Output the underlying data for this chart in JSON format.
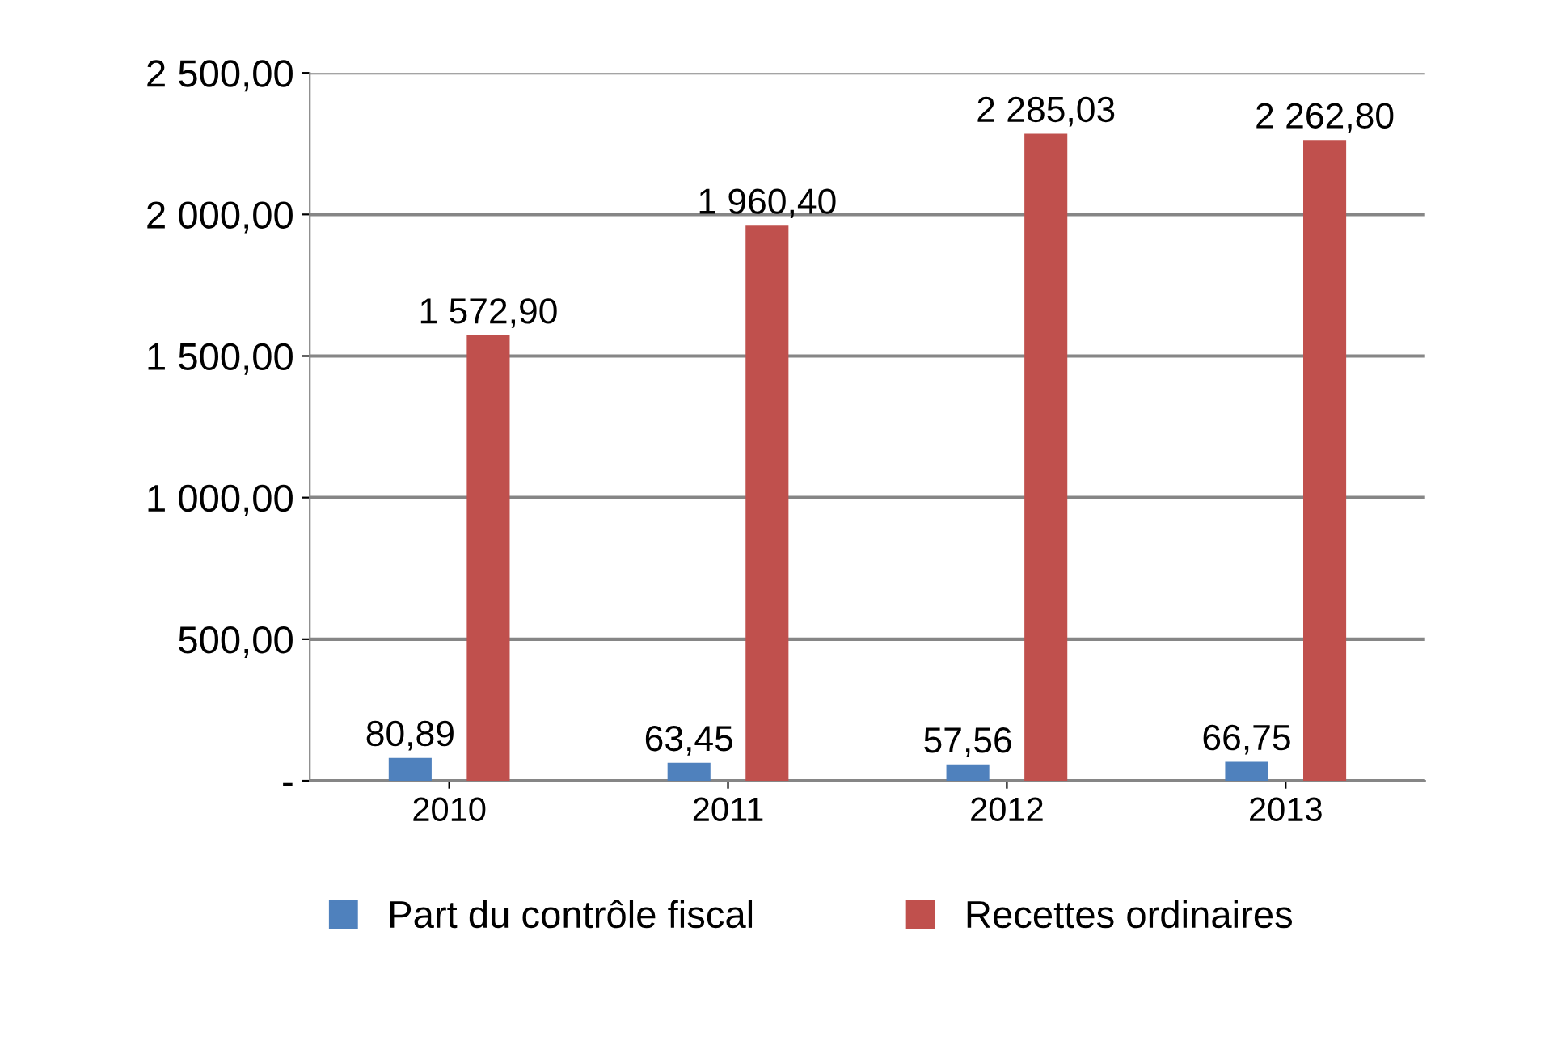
{
  "chart_data": {
    "type": "bar",
    "categories": [
      "2010",
      "2011",
      "2012",
      "2013"
    ],
    "series": [
      {
        "name": "Part du contrôle fiscal",
        "color": "#4f81bd",
        "values": [
          80.89,
          63.45,
          57.56,
          66.75
        ],
        "value_labels": [
          "80,89",
          "63,45",
          "57,56",
          "66,75"
        ]
      },
      {
        "name": "Recettes ordinaires",
        "color": "#c0504d",
        "values": [
          1572.9,
          1960.4,
          2285.03,
          2262.8
        ],
        "value_labels": [
          "1 572,90",
          "1 960,40",
          "2 285,03",
          "2 262,80"
        ]
      }
    ],
    "ylim": [
      0,
      2500
    ],
    "yticks": [
      {
        "value": 0,
        "label": "-"
      },
      {
        "value": 500,
        "label": "500,00"
      },
      {
        "value": 1000,
        "label": "1 000,00"
      },
      {
        "value": 1500,
        "label": "1 500,00"
      },
      {
        "value": 2000,
        "label": "2 000,00"
      },
      {
        "value": 2500,
        "label": "2 500,00"
      }
    ],
    "grid": "y",
    "legend": "bottom"
  }
}
